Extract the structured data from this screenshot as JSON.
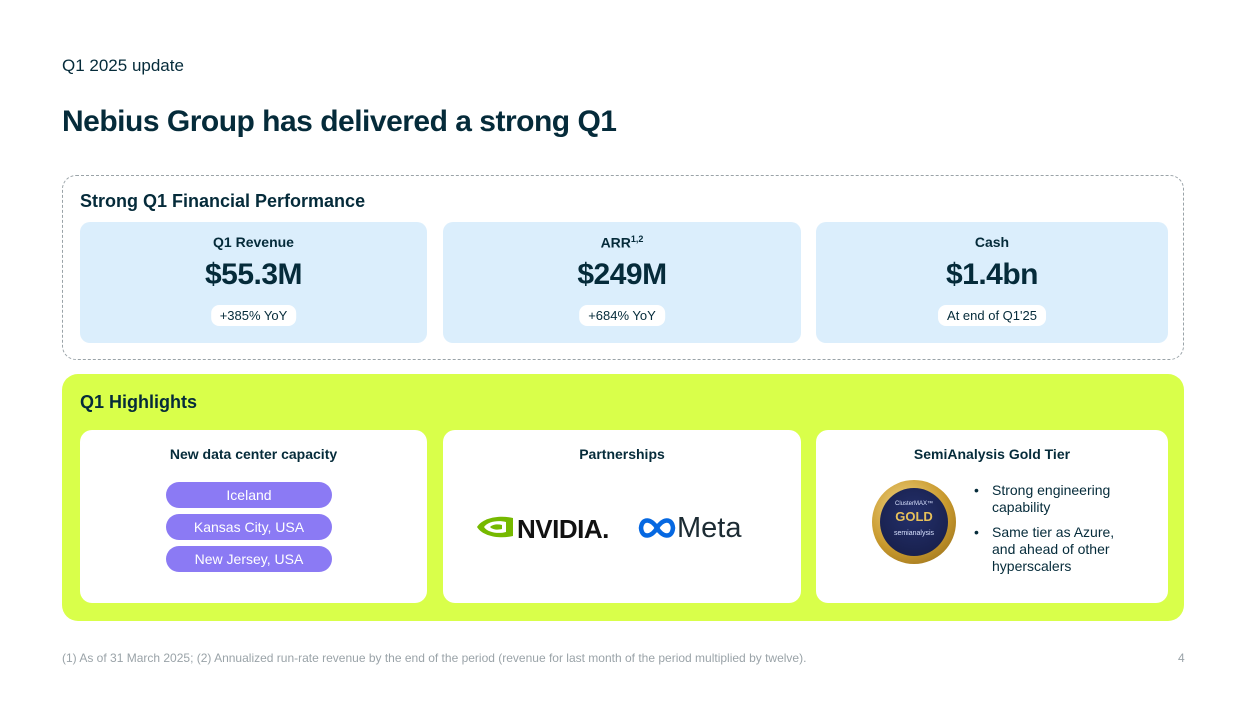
{
  "header": {
    "eyebrow": "Q1 2025 update",
    "title": "Nebius Group has delivered a strong Q1"
  },
  "financial": {
    "section_title": "Strong Q1 Financial Performance",
    "metrics": [
      {
        "label": "Q1 Revenue",
        "sup": "",
        "value": "$55.3M",
        "note": "+385% YoY"
      },
      {
        "label": "ARR",
        "sup": "1,2",
        "value": "$249M",
        "note": "+684% YoY"
      },
      {
        "label": "Cash",
        "sup": "",
        "value": "$1.4bn",
        "note": "At end of Q1'25"
      }
    ]
  },
  "highlights": {
    "section_title": "Q1 Highlights",
    "capacity": {
      "title": "New data center capacity",
      "locations": [
        "Iceland",
        "Kansas City, USA",
        "New Jersey, USA"
      ]
    },
    "partnerships": {
      "title": "Partnerships",
      "partners": [
        "NVIDIA.",
        "Meta"
      ]
    },
    "tier": {
      "title": "SemiAnalysis Gold Tier",
      "badge_top": "ClusterMAX™",
      "badge_main": "GOLD",
      "badge_brand": "semianalysis",
      "bullets": [
        "Strong engineering capability",
        "Same tier as Azure, and ahead of other hyperscalers"
      ]
    }
  },
  "footer": {
    "footnote": "(1) As of 31 March 2025; (2) Annualized run-rate revenue by the end of the period (revenue for last month of the period multiplied by twelve).",
    "page": "4"
  },
  "colors": {
    "ink": "#052b3a",
    "metric_bg": "#dbeefc",
    "highlight_bg": "#d9ff4a",
    "pill": "#8b7af4",
    "nvidia_green": "#76b900",
    "meta_blue": "#0668e1",
    "gold": "#c99a2e"
  }
}
